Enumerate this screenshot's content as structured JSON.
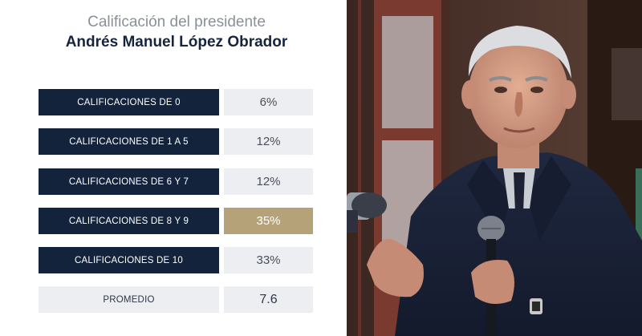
{
  "header": {
    "title": "Calificación del presidente",
    "subtitle": "Andrés Manuel López Obrador"
  },
  "ratings": [
    {
      "label": "CALIFICACIONES DE 0",
      "value": "6%"
    },
    {
      "label": "CALIFICACIONES DE 1 A 5",
      "value": "12%"
    },
    {
      "label": "CALIFICACIONES DE 6 Y 7",
      "value": "12%"
    },
    {
      "label": "CALIFICACIONES DE 8 Y 9",
      "value": "35%"
    },
    {
      "label": "CALIFICACIONES DE 10",
      "value": "33%"
    }
  ],
  "summary": {
    "label": "PROMEDIO",
    "value": "7.6"
  },
  "colors": {
    "label_bg": "#12233b",
    "value_bg": "#eceef1",
    "highlight": "#b6a278"
  },
  "photo": {
    "subject": "speaker-at-microphone"
  }
}
